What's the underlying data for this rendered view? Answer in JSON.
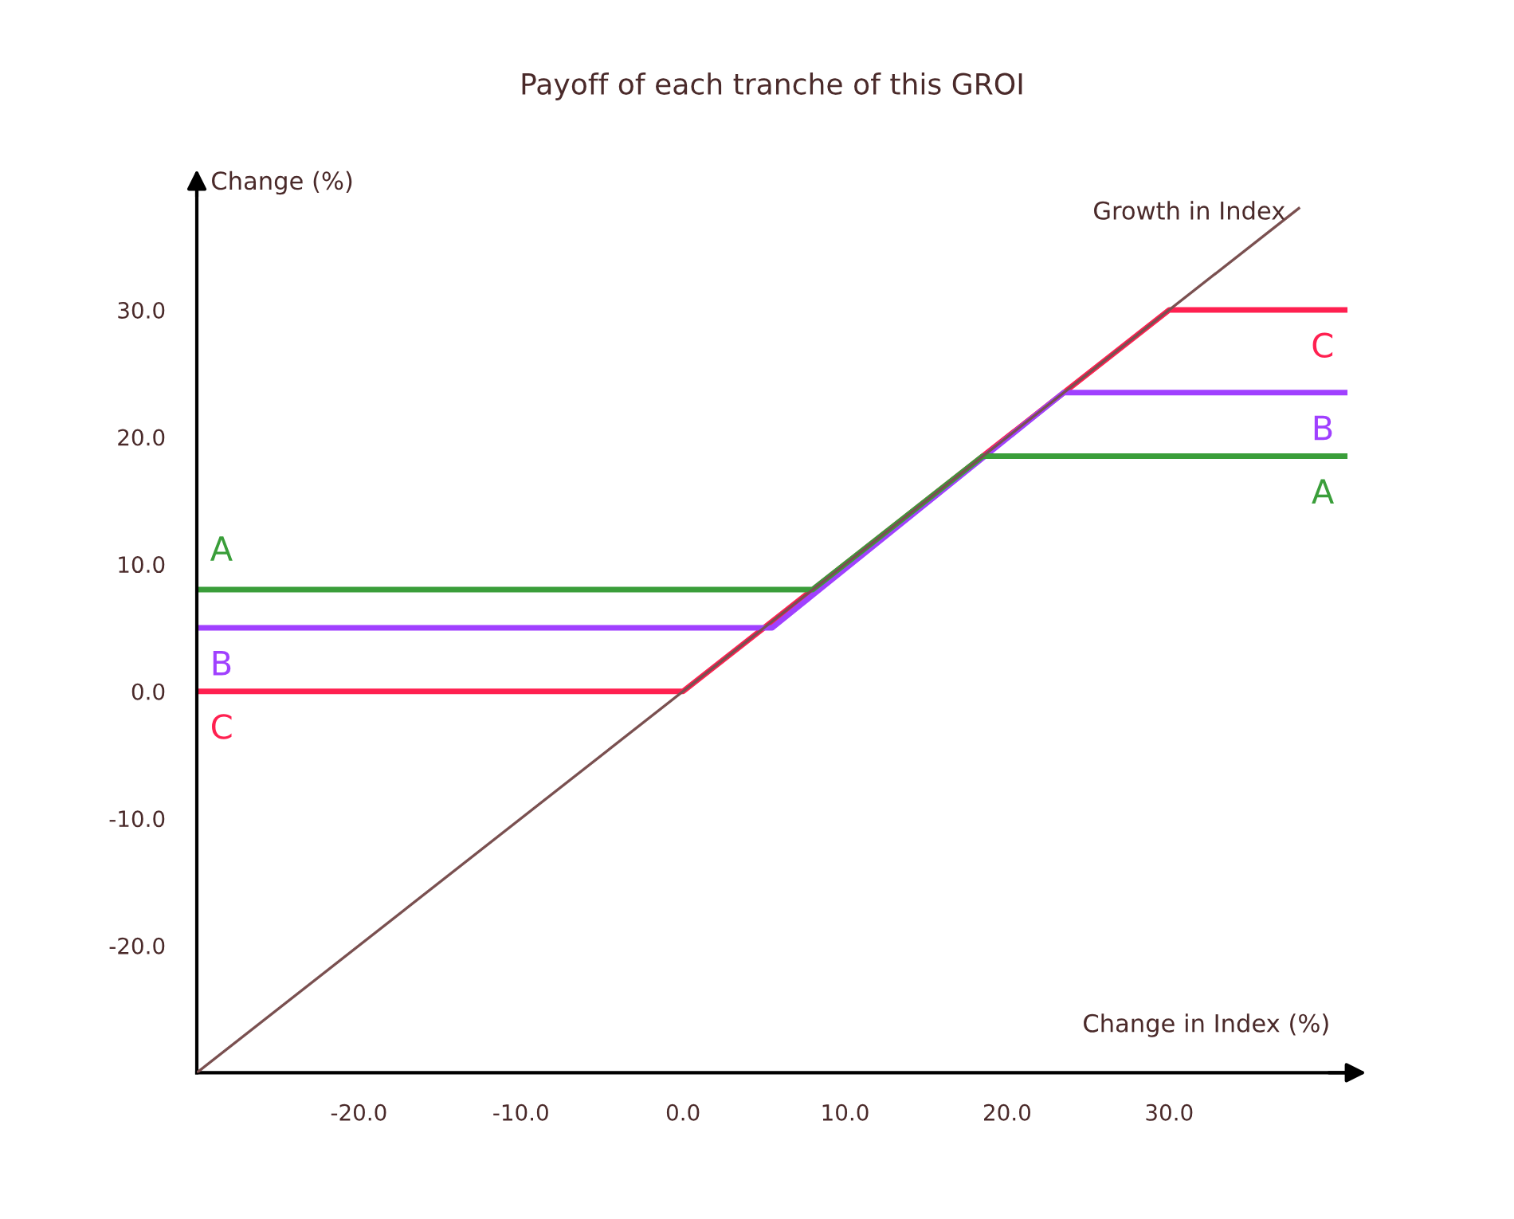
{
  "chart_data": {
    "type": "line",
    "title": "Payoff of each tranche of this GROI",
    "xlabel": "Change in Index (%)",
    "ylabel": "Change (%)",
    "xlim": [
      -30,
      41
    ],
    "ylim": [
      -30,
      40
    ],
    "xticks": [
      {
        "value": -20,
        "label": "-20.0"
      },
      {
        "value": -10,
        "label": "-10.0"
      },
      {
        "value": 0,
        "label": "0.0"
      },
      {
        "value": 10,
        "label": "10.0"
      },
      {
        "value": 20,
        "label": "20.0"
      },
      {
        "value": 30,
        "label": "30.0"
      }
    ],
    "yticks": [
      {
        "value": -20,
        "label": "-20.0"
      },
      {
        "value": -10,
        "label": "-10.0"
      },
      {
        "value": 0,
        "label": "0.0"
      },
      {
        "value": 10,
        "label": "10.0"
      },
      {
        "value": 20,
        "label": "20.0"
      },
      {
        "value": 30,
        "label": "30.0"
      }
    ],
    "grid": false,
    "legend": false,
    "marker": "none",
    "line_style": "solid",
    "series": [
      {
        "name": "A",
        "color": "#3a9e3a",
        "x": [
          -30,
          8,
          18.5,
          41
        ],
        "values": [
          8,
          8,
          18.5,
          18.5
        ]
      },
      {
        "name": "B",
        "color": "#a040ff",
        "x": [
          -30,
          5.5,
          23.5,
          41
        ],
        "values": [
          5,
          5,
          23.5,
          23.5
        ]
      },
      {
        "name": "C",
        "color": "#ff2050",
        "x": [
          -30,
          0,
          30,
          41
        ],
        "values": [
          0,
          0,
          30,
          30
        ]
      },
      {
        "name": "Growth in Index",
        "color": "#7a5050",
        "x": [
          -30,
          38
        ],
        "values": [
          -30,
          38
        ]
      }
    ]
  }
}
